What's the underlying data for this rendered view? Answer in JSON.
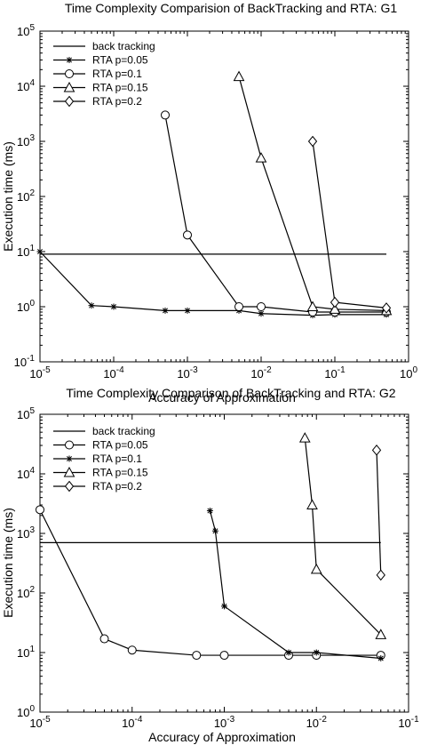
{
  "chart_data": [
    {
      "type": "line",
      "title": "Time Complexity Comparision of BackTracking and RTA: G1",
      "xlabel": "Accuracy of Approximation",
      "ylabel": "Execution time (ms)",
      "xscale": "log",
      "yscale": "log",
      "xlim": [
        1e-05,
        1
      ],
      "ylim": [
        0.1,
        100000
      ],
      "x_tick_labels": [
        {
          "value": 1e-05,
          "base": "10",
          "exp": "-5"
        },
        {
          "value": 0.0001,
          "base": "10",
          "exp": "-4"
        },
        {
          "value": 0.001,
          "base": "10",
          "exp": "-3"
        },
        {
          "value": 0.01,
          "base": "10",
          "exp": "-2"
        },
        {
          "value": 0.1,
          "base": "10",
          "exp": "-1"
        },
        {
          "value": 1,
          "base": "10",
          "exp": "0"
        }
      ],
      "y_tick_labels": [
        {
          "value": 0.1,
          "base": "10",
          "exp": "-1"
        },
        {
          "value": 1,
          "base": "10",
          "exp": "0"
        },
        {
          "value": 10,
          "base": "10",
          "exp": "1"
        },
        {
          "value": 100,
          "base": "10",
          "exp": "2"
        },
        {
          "value": 1000,
          "base": "10",
          "exp": "3"
        },
        {
          "value": 10000,
          "base": "10",
          "exp": "4"
        },
        {
          "value": 100000,
          "base": "10",
          "exp": "5"
        }
      ],
      "legend_position": "top-left",
      "grid": false,
      "series": [
        {
          "name": "back tracking",
          "marker": "none",
          "points": [
            [
              1e-05,
              9
            ],
            [
              0.5,
              9
            ]
          ]
        },
        {
          "name": "RTA p=0.05",
          "marker": "star",
          "points": [
            [
              1e-05,
              10
            ],
            [
              5e-05,
              1.05
            ],
            [
              0.0001,
              1.0
            ],
            [
              0.0005,
              0.85
            ],
            [
              0.001,
              0.85
            ],
            [
              0.005,
              0.85
            ],
            [
              0.01,
              0.75
            ],
            [
              0.05,
              0.7
            ],
            [
              0.1,
              0.72
            ],
            [
              0.5,
              0.72
            ]
          ]
        },
        {
          "name": "RTA p=0.1",
          "marker": "circle",
          "points": [
            [
              0.0005,
              3000
            ],
            [
              0.001,
              20
            ],
            [
              0.005,
              1.0
            ],
            [
              0.01,
              1.0
            ],
            [
              0.05,
              0.8
            ],
            [
              0.1,
              0.8
            ],
            [
              0.5,
              0.8
            ]
          ]
        },
        {
          "name": "RTA p=0.15",
          "marker": "triangle",
          "points": [
            [
              0.005,
              15000
            ],
            [
              0.01,
              500
            ],
            [
              0.05,
              1.0
            ],
            [
              0.1,
              0.9
            ],
            [
              0.5,
              0.85
            ]
          ]
        },
        {
          "name": "RTA p=0.2",
          "marker": "diamond",
          "points": [
            [
              0.05,
              1000
            ],
            [
              0.1,
              1.2
            ],
            [
              0.5,
              0.95
            ]
          ]
        }
      ]
    },
    {
      "type": "line",
      "title": "Time Complexity Comparison of BackTracking and RTA: G2",
      "xlabel": "Accuracy of Approximation",
      "ylabel": "Execution time (ms)",
      "xscale": "log",
      "yscale": "log",
      "xlim": [
        1e-05,
        0.1
      ],
      "ylim": [
        1,
        100000
      ],
      "x_tick_labels": [
        {
          "value": 1e-05,
          "base": "10",
          "exp": "-5"
        },
        {
          "value": 0.0001,
          "base": "10",
          "exp": "-4"
        },
        {
          "value": 0.001,
          "base": "10",
          "exp": "-3"
        },
        {
          "value": 0.01,
          "base": "10",
          "exp": "-2"
        },
        {
          "value": 0.1,
          "base": "10",
          "exp": "-1"
        }
      ],
      "y_tick_labels": [
        {
          "value": 1,
          "base": "10",
          "exp": "0"
        },
        {
          "value": 10,
          "base": "10",
          "exp": "1"
        },
        {
          "value": 100,
          "base": "10",
          "exp": "2"
        },
        {
          "value": 1000,
          "base": "10",
          "exp": "3"
        },
        {
          "value": 10000,
          "base": "10",
          "exp": "4"
        },
        {
          "value": 100000,
          "base": "10",
          "exp": "5"
        }
      ],
      "legend_position": "top-left",
      "grid": false,
      "series": [
        {
          "name": "back tracking",
          "marker": "none",
          "points": [
            [
              1e-05,
              700
            ],
            [
              0.05,
              700
            ]
          ]
        },
        {
          "name": "RTA p=0.05",
          "marker": "circle",
          "points": [
            [
              1e-05,
              2500
            ],
            [
              5e-05,
              17
            ],
            [
              0.0001,
              11
            ],
            [
              0.0005,
              9
            ],
            [
              0.001,
              9
            ],
            [
              0.005,
              9
            ],
            [
              0.01,
              9
            ],
            [
              0.05,
              9
            ]
          ]
        },
        {
          "name": "RTA p=0.1",
          "marker": "star",
          "points": [
            [
              0.0007,
              2400
            ],
            [
              0.0008,
              1100
            ],
            [
              0.001,
              60
            ],
            [
              0.005,
              10
            ],
            [
              0.01,
              10
            ],
            [
              0.05,
              8
            ]
          ]
        },
        {
          "name": "RTA p=0.15",
          "marker": "triangle",
          "points": [
            [
              0.0075,
              40000
            ],
            [
              0.009,
              3000
            ],
            [
              0.01,
              250
            ],
            [
              0.05,
              20
            ]
          ]
        },
        {
          "name": "RTA p=0.2",
          "marker": "diamond",
          "points": [
            [
              0.045,
              25000
            ],
            [
              0.05,
              200
            ]
          ]
        }
      ]
    }
  ]
}
